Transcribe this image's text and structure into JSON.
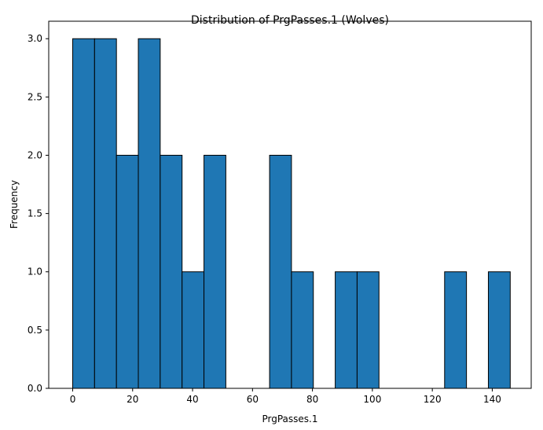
{
  "chart_data": {
    "type": "bar",
    "subtype": "histogram",
    "title": "Distribution of PrgPasses.1 (Wolves)",
    "xlabel": "PrgPasses.1",
    "ylabel": "Frequency",
    "xlim": [
      -8,
      153
    ],
    "ylim": [
      0,
      3.15
    ],
    "x_ticks": [
      0,
      20,
      40,
      60,
      80,
      100,
      120,
      140
    ],
    "y_ticks": [
      0.0,
      0.5,
      1.0,
      1.5,
      2.0,
      2.5,
      3.0
    ],
    "y_tick_labels": [
      "0.0",
      "0.5",
      "1.0",
      "1.5",
      "2.0",
      "2.5",
      "3.0"
    ],
    "bin_edges": [
      0,
      7.3,
      14.6,
      21.9,
      29.2,
      36.5,
      43.8,
      51.1,
      58.4,
      65.7,
      73.0,
      80.3,
      87.6,
      94.9,
      102.2,
      109.5,
      116.8,
      124.1,
      131.4,
      138.7,
      146.0
    ],
    "counts": [
      3,
      3,
      2,
      3,
      2,
      1,
      2,
      0,
      0,
      2,
      1,
      0,
      1,
      1,
      0,
      0,
      0,
      1,
      0,
      1
    ],
    "grid": false,
    "legend": "none",
    "colors": {
      "bar_fill": "#1f77b4",
      "bar_edge": "#000000"
    }
  }
}
